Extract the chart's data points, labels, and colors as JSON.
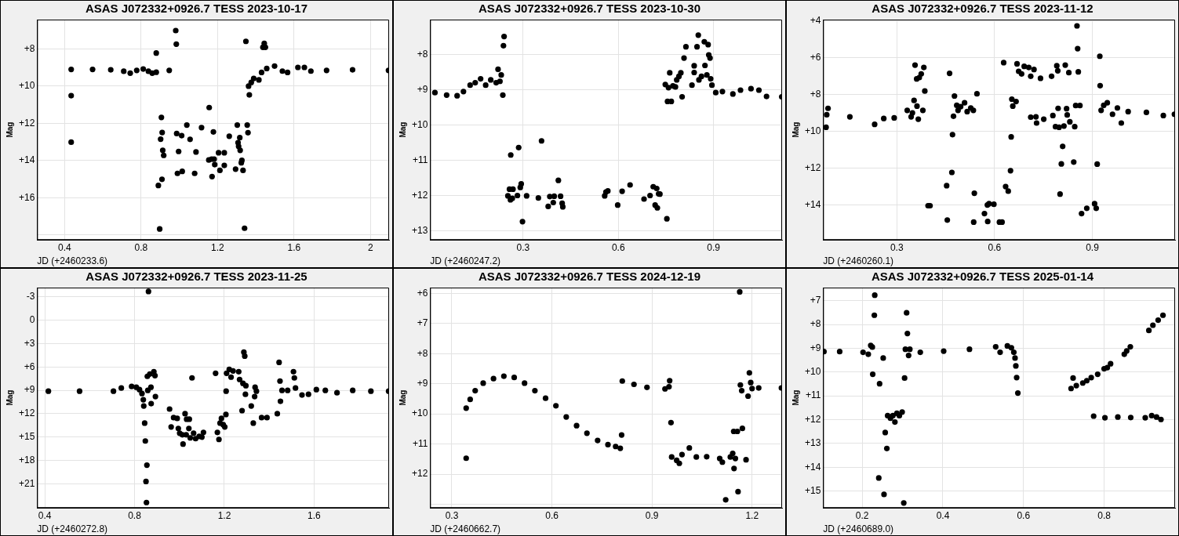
{
  "chart_data": [
    {
      "type": "scatter",
      "title": "ASAS J072332+0926.7 TESS 2023-10-17",
      "xlabel": "JD (+2460233.6)",
      "ylabel": "Mag",
      "color": "#000000",
      "marker": "circle",
      "grid": true,
      "xlim": [
        0.256,
        2.097
      ],
      "ylim": [
        18.27,
        6.42
      ],
      "xticks": [
        0.4,
        0.8,
        1.2,
        1.6,
        2.0
      ],
      "yticks": [
        {
          "value": 8,
          "label": "+8"
        },
        {
          "value": 10,
          "label": "+10"
        },
        {
          "value": 12,
          "label": "+12"
        },
        {
          "value": 14,
          "label": "+14"
        },
        {
          "value": 16,
          "label": "+16"
        },
        {
          "value": 18,
          "label": null
        }
      ],
      "x": [
        0.434,
        0.546,
        0.641,
        0.709,
        0.743,
        0.777,
        0.811,
        0.838,
        0.858,
        0.879,
        0.434,
        0.434,
        0.879,
        0.947,
        0.981,
        0.984,
        0.89,
        0.897,
        0.906,
        0.902,
        0.91,
        0.913,
        0.918,
        0.909,
        0.986,
        0.996,
        0.99,
        1.012,
        1.015,
        1.039,
        1.056,
        1.08,
        1.087,
        1.116,
        1.156,
        1.154,
        1.169,
        1.178,
        1.182,
        1.185,
        1.171,
        1.205,
        1.212,
        1.235,
        1.235,
        1.261,
        1.294,
        1.303,
        1.307,
        1.31,
        1.316,
        1.318,
        1.327,
        1.324,
        1.333,
        1.341,
        1.348,
        1.355,
        1.359,
        1.366,
        1.362,
        1.376,
        1.389,
        1.416,
        1.43,
        1.437,
        1.444,
        1.45,
        1.457,
        1.498,
        1.539,
        1.566,
        1.62,
        1.654,
        1.688,
        1.77,
        1.906,
        2.094
      ],
      "values": [
        9.1,
        9.1,
        9.12,
        9.2,
        9.3,
        9.15,
        9.08,
        9.2,
        9.3,
        9.25,
        10.51,
        13.01,
        8.22,
        9.15,
        7.01,
        7.74,
        15.34,
        17.68,
        11.68,
        12.85,
        12.49,
        13.45,
        13.72,
        15.01,
        12.55,
        13.51,
        14.69,
        12.66,
        14.58,
        12.09,
        12.86,
        14.69,
        13.54,
        12.23,
        11.15,
        13.97,
        13.92,
        12.46,
        13.92,
        14.22,
        14.86,
        13.58,
        14.53,
        13.58,
        14.26,
        12.69,
        14.46,
        12.09,
        13.04,
        13.24,
        12.77,
        13.45,
        13.99,
        14.12,
        14.53,
        17.64,
        7.59,
        12.09,
        12.5,
        10.47,
        10.0,
        9.8,
        9.59,
        9.66,
        9.26,
        7.91,
        7.7,
        7.91,
        9.05,
        8.92,
        9.19,
        9.26,
        8.99,
        8.99,
        9.19,
        9.15,
        9.12,
        9.15
      ]
    },
    {
      "type": "scatter",
      "title": "ASAS J072332+0926.7 TESS 2023-10-30",
      "xlabel": "JD (+2460247.2)",
      "ylabel": "Mag",
      "color": "#000000",
      "marker": "circle",
      "grid": true,
      "xlim": [
        0.007,
        1.116
      ],
      "ylim": [
        13.25,
        7.0
      ],
      "xticks": [
        0.3,
        0.6,
        0.9
      ],
      "yticks": [
        {
          "value": 8,
          "label": "+8"
        },
        {
          "value": 9,
          "label": "+9"
        },
        {
          "value": 10,
          "label": "+10"
        },
        {
          "value": 11,
          "label": "+11"
        },
        {
          "value": 12,
          "label": "+12"
        },
        {
          "value": 13,
          "label": "+13"
        }
      ],
      "x": [
        0.022,
        0.059,
        0.092,
        0.112,
        0.133,
        0.149,
        0.166,
        0.182,
        0.198,
        0.215,
        0.221,
        0.231,
        0.227,
        0.236,
        0.238,
        0.24,
        0.261,
        0.286,
        0.358,
        0.252,
        0.257,
        0.266,
        0.26,
        0.268,
        0.282,
        0.291,
        0.294,
        0.298,
        0.311,
        0.348,
        0.379,
        0.384,
        0.395,
        0.398,
        0.411,
        0.418,
        0.423,
        0.425,
        0.557,
        0.561,
        0.567,
        0.598,
        0.612,
        0.637,
        0.681,
        0.7,
        0.71,
        0.721,
        0.716,
        0.723,
        0.727,
        0.731,
        0.753,
        0.748,
        0.755,
        0.758,
        0.762,
        0.767,
        0.772,
        0.78,
        0.784,
        0.791,
        0.797,
        0.801,
        0.807,
        0.813,
        0.832,
        0.839,
        0.839,
        0.848,
        0.852,
        0.854,
        0.862,
        0.871,
        0.873,
        0.879,
        0.883,
        0.885,
        0.889,
        0.891,
        0.895,
        0.907,
        0.928,
        0.961,
        0.985,
        1.018,
        1.043,
        1.067,
        1.115
      ],
      "values": [
        9.07,
        9.14,
        9.16,
        9.04,
        8.86,
        8.79,
        8.68,
        8.86,
        8.71,
        8.79,
        8.41,
        8.57,
        8.75,
        9.14,
        7.74,
        7.48,
        10.84,
        10.63,
        10.44,
        12.0,
        11.81,
        12.07,
        12.11,
        11.81,
        11.99,
        11.76,
        11.66,
        12.73,
        12.0,
        12.06,
        12.3,
        12.02,
        12.19,
        12.01,
        11.56,
        12.01,
        12.21,
        12.31,
        12.0,
        11.89,
        11.86,
        12.26,
        11.87,
        11.69,
        12.09,
        11.99,
        11.74,
        11.79,
        12.26,
        12.34,
        11.94,
        11.95,
        12.65,
        8.84,
        9.32,
        8.93,
        8.51,
        9.32,
        8.88,
        8.91,
        8.71,
        8.61,
        8.51,
        9.19,
        8.09,
        7.77,
        8.86,
        8.31,
        8.5,
        7.77,
        7.44,
        8.71,
        8.61,
        7.63,
        8.3,
        8.57,
        7.71,
        8.0,
        8.09,
        8.68,
        8.86,
        9.07,
        9.04,
        9.11,
        9.0,
        8.96,
        9.0,
        9.18,
        9.19
      ]
    },
    {
      "type": "scatter",
      "title": "ASAS J072332+0926.7 TESS 2023-11-12",
      "xlabel": "JD (+2460260.1)",
      "ylabel": "Mag",
      "color": "#000000",
      "marker": "circle",
      "grid": true,
      "xlim": [
        0.074,
        1.154
      ],
      "ylim": [
        15.9,
        3.93
      ],
      "xticks": [
        0.3,
        0.6,
        0.9
      ],
      "yticks": [
        {
          "value": 4,
          "label": "+4"
        },
        {
          "value": 6,
          "label": "+6"
        },
        {
          "value": 8,
          "label": "+8"
        },
        {
          "value": 10,
          "label": "+10"
        },
        {
          "value": 12,
          "label": "+12"
        },
        {
          "value": 14,
          "label": "+14"
        }
      ],
      "x": [
        0.083,
        0.085,
        0.089,
        0.156,
        0.232,
        0.26,
        0.292,
        0.332,
        0.344,
        0.348,
        0.353,
        0.356,
        0.361,
        0.362,
        0.366,
        0.369,
        0.375,
        0.38,
        0.383,
        0.386,
        0.396,
        0.402,
        0.453,
        0.455,
        0.462,
        0.469,
        0.471,
        0.474,
        0.477,
        0.484,
        0.488,
        0.496,
        0.508,
        0.516,
        0.527,
        0.535,
        0.538,
        0.536,
        0.546,
        0.569,
        0.578,
        0.579,
        0.583,
        0.598,
        0.615,
        0.623,
        0.628,
        0.634,
        0.642,
        0.649,
        0.651,
        0.653,
        0.656,
        0.666,
        0.669,
        0.674,
        0.683,
        0.691,
        0.705,
        0.711,
        0.721,
        0.711,
        0.727,
        0.729,
        0.741,
        0.751,
        0.775,
        0.779,
        0.787,
        0.791,
        0.794,
        0.795,
        0.798,
        0.801,
        0.805,
        0.809,
        0.813,
        0.817,
        0.821,
        0.823,
        0.828,
        0.831,
        0.843,
        0.846,
        0.849,
        0.853,
        0.855,
        0.857,
        0.862,
        0.867,
        0.883,
        0.907,
        0.912,
        0.915,
        0.923,
        0.924,
        0.927,
        0.935,
        0.946,
        0.962,
        0.977,
        0.989,
        1.01,
        1.066,
        1.118,
        1.152
      ],
      "values": [
        9.78,
        9.1,
        8.75,
        9.21,
        9.62,
        9.3,
        9.27,
        8.86,
        9.21,
        9.0,
        8.32,
        6.4,
        7.15,
        8.63,
        9.34,
        7.08,
        6.88,
        8.86,
        6.53,
        7.81,
        14.04,
        14.04,
        12.95,
        14.82,
        6.85,
        12.23,
        10.18,
        9.18,
        8.08,
        8.59,
        8.86,
        8.66,
        8.45,
        8.93,
        8.73,
        8.86,
        13.36,
        14.93,
        7.96,
        14.47,
        14.0,
        14.9,
        13.93,
        13.96,
        14.93,
        14.93,
        6.27,
        13.0,
        13.25,
        12.14,
        10.3,
        8.25,
        8.63,
        8.38,
        6.33,
        6.74,
        6.88,
        6.47,
        6.53,
        7.01,
        6.64,
        9.23,
        9.21,
        9.55,
        7.12,
        9.34,
        7.01,
        9.14,
        9.75,
        6.44,
        6.71,
        8.75,
        9.78,
        13.41,
        11.77,
        10.82,
        9.71,
        6.4,
        8.77,
        9.11,
        6.81,
        9.48,
        11.67,
        9.75,
        8.6,
        4.27,
        5.51,
        6.77,
        8.6,
        14.47,
        14.18,
        13.93,
        14.18,
        11.78,
        5.92,
        7.52,
        8.86,
        8.59,
        8.45,
        9.07,
        8.73,
        9.55,
        8.93,
        8.97,
        9.14,
        9.07
      ]
    },
    {
      "type": "scatter",
      "title": "ASAS J072332+0926.7 TESS 2023-11-25",
      "xlabel": "JD (+2460272.8)",
      "ylabel": "Mag",
      "color": "#000000",
      "marker": "circle",
      "grid": true,
      "xlim": [
        0.366,
        1.934
      ],
      "ylim": [
        24.1,
        -4.2
      ],
      "xticks": [
        0.4,
        0.8,
        1.2,
        1.6
      ],
      "yticks": [
        -3,
        0,
        {
          "value": 3,
          "label": "+3"
        },
        {
          "value": 6,
          "label": "+6"
        },
        {
          "value": 9,
          "label": "+9"
        },
        {
          "value": 12,
          "label": "+12"
        },
        {
          "value": 15,
          "label": "+15"
        },
        {
          "value": 18,
          "label": "+18"
        },
        {
          "value": 21,
          "label": "+21"
        },
        {
          "value": 24,
          "label": null
        }
      ],
      "x": [
        0.416,
        0.555,
        0.706,
        0.741,
        0.787,
        0.808,
        0.822,
        0.833,
        0.839,
        0.841,
        0.845,
        0.848,
        0.855,
        0.851,
        0.853,
        0.862,
        0.859,
        0.857,
        0.868,
        0.874,
        0.873,
        0.886,
        0.891,
        0.893,
        0.956,
        0.963,
        0.974,
        0.99,
        0.995,
        1.001,
        1.013,
        1.016,
        1.025,
        1.03,
        1.032,
        1.042,
        1.044,
        1.048,
        1.056,
        1.063,
        1.072,
        1.088,
        1.1,
        1.107,
        1.161,
        1.169,
        1.176,
        1.181,
        1.187,
        1.195,
        1.202,
        1.207,
        1.208,
        1.21,
        1.222,
        1.23,
        1.239,
        1.264,
        1.268,
        1.279,
        1.283,
        1.287,
        1.291,
        1.294,
        1.296,
        1.32,
        1.329,
        1.335,
        1.337,
        1.343,
        1.366,
        1.39,
        1.436,
        1.444,
        1.448,
        1.45,
        1.457,
        1.482,
        1.508,
        1.512,
        1.517,
        1.546,
        1.575,
        1.61,
        1.65,
        1.702,
        1.772,
        1.853,
        1.932
      ],
      "values": [
        9.1,
        9.1,
        9.1,
        8.7,
        8.5,
        8.6,
        8.9,
        9.4,
        10.2,
        11.0,
        13.2,
        15.5,
        18.6,
        20.7,
        23.4,
        -3.7,
        9.0,
        7.2,
        6.9,
        10.7,
        8.6,
        6.6,
        7.1,
        9.8,
        11.4,
        13.7,
        12.5,
        12.6,
        13.9,
        14.5,
        14.7,
        15.9,
        12.0,
        14.7,
        12.7,
        13.9,
        12.7,
        15.1,
        7.4,
        14.5,
        15.2,
        14.9,
        15.0,
        14.4,
        6.8,
        14.4,
        15.3,
        13.2,
        12.6,
        13.4,
        13.7,
        12.1,
        9.1,
        6.8,
        6.3,
        7.3,
        6.5,
        6.6,
        7.6,
        11.6,
        8.1,
        4.1,
        4.6,
        9.5,
        8.4,
        11.0,
        13.2,
        9.8,
        8.6,
        9.1,
        12.5,
        12.5,
        12.0,
        5.4,
        7.8,
        10.4,
        9.0,
        9.0,
        6.6,
        7.4,
        8.7,
        9.6,
        9.5,
        8.9,
        9.0,
        9.3,
        9.0,
        9.1,
        9.1
      ]
    },
    {
      "type": "scatter",
      "title": "ASAS J072332+0926.7 TESS 2024-12-19",
      "xlabel": "JD (+2460662.7)",
      "ylabel": "Mag",
      "color": "#000000",
      "marker": "circle",
      "grid": true,
      "xlim": [
        0.235,
        1.29
      ],
      "ylim": [
        13.12,
        5.81
      ],
      "xticks": [
        0.3,
        0.6,
        0.9,
        1.2
      ],
      "yticks": [
        {
          "value": 6,
          "label": "+6"
        },
        {
          "value": 7,
          "label": "+7"
        },
        {
          "value": 8,
          "label": "+8"
        },
        {
          "value": 9,
          "label": "+9"
        },
        {
          "value": 10,
          "label": "+10"
        },
        {
          "value": 11,
          "label": "+11"
        },
        {
          "value": 12,
          "label": "+12"
        },
        {
          "value": 13,
          "label": null
        }
      ],
      "x": [
        0.343,
        0.355,
        0.37,
        0.394,
        0.425,
        0.456,
        0.487,
        0.518,
        0.549,
        0.581,
        0.612,
        0.643,
        0.674,
        0.705,
        0.737,
        0.768,
        0.791,
        0.805,
        0.809,
        0.343,
        0.811,
        0.846,
        0.885,
        0.939,
        0.951,
        0.953,
        0.957,
        0.959,
        0.974,
        0.982,
        0.99,
        1.012,
        1.033,
        1.064,
        1.103,
        1.111,
        1.121,
        1.135,
        1.142,
        1.146,
        1.15,
        1.145,
        1.156,
        1.158,
        1.163,
        1.165,
        1.169,
        1.171,
        1.182,
        1.188,
        1.192,
        1.196,
        1.2,
        1.22,
        1.288
      ],
      "values": [
        9.81,
        9.52,
        9.23,
        8.98,
        8.83,
        8.75,
        8.79,
        8.98,
        9.23,
        9.48,
        9.73,
        10.1,
        10.39,
        10.64,
        10.88,
        11.02,
        11.08,
        11.14,
        10.7,
        11.47,
        8.91,
        9.02,
        9.12,
        9.17,
        9.1,
        8.9,
        10.29,
        11.43,
        11.54,
        11.64,
        11.35,
        11.13,
        11.43,
        11.42,
        11.48,
        11.6,
        12.85,
        11.43,
        11.31,
        11.81,
        11.48,
        10.58,
        10.58,
        12.58,
        5.95,
        9.04,
        9.23,
        10.48,
        11.52,
        9.41,
        8.64,
        8.96,
        9.16,
        9.14,
        9.14
      ]
    },
    {
      "type": "scatter",
      "title": "ASAS J072332+0926.7 TESS 2025-01-14",
      "xlabel": "JD (+2460689.0)",
      "ylabel": "Mag",
      "color": "#000000",
      "marker": "circle",
      "grid": true,
      "xlim": [
        0.103,
        0.976
      ],
      "ylim": [
        15.71,
        6.45
      ],
      "xticks": [
        0.2,
        0.4,
        0.6,
        0.8
      ],
      "yticks": [
        {
          "value": 7,
          "label": "+7"
        },
        {
          "value": 8,
          "label": "+8"
        },
        {
          "value": 9,
          "label": "+9"
        },
        {
          "value": 10,
          "label": "+10"
        },
        {
          "value": 11,
          "label": "+11"
        },
        {
          "value": 12,
          "label": "+12"
        },
        {
          "value": 13,
          "label": "+13"
        },
        {
          "value": 14,
          "label": "+14"
        },
        {
          "value": 15,
          "label": "+15"
        }
      ],
      "x": [
        0.105,
        0.144,
        0.202,
        0.215,
        0.221,
        0.225,
        0.226,
        0.23,
        0.231,
        0.241,
        0.243,
        0.252,
        0.254,
        0.257,
        0.261,
        0.263,
        0.27,
        0.276,
        0.281,
        0.286,
        0.292,
        0.299,
        0.303,
        0.305,
        0.307,
        0.31,
        0.312,
        0.315,
        0.318,
        0.344,
        0.402,
        0.466,
        0.531,
        0.56,
        0.57,
        0.576,
        0.579,
        0.581,
        0.583,
        0.586,
        0.542,
        0.718,
        0.723,
        0.731,
        0.747,
        0.757,
        0.768,
        0.784,
        0.8,
        0.808,
        0.816,
        0.85,
        0.856,
        0.865,
        0.911,
        0.921,
        0.934,
        0.946,
        0.774,
        0.802,
        0.834,
        0.866,
        0.902,
        0.918,
        0.93,
        0.941
      ],
      "values": [
        9.14,
        9.14,
        9.17,
        9.25,
        8.88,
        8.95,
        10.09,
        7.61,
        6.77,
        14.45,
        10.49,
        9.41,
        15.14,
        12.54,
        13.21,
        11.83,
        11.94,
        11.83,
        12.1,
        11.73,
        11.83,
        11.68,
        15.5,
        10.25,
        9.04,
        7.51,
        8.38,
        9.3,
        9.04,
        9.17,
        9.12,
        9.04,
        8.94,
        8.9,
        8.98,
        9.17,
        9.41,
        9.74,
        10.23,
        10.88,
        9.17,
        10.69,
        10.25,
        10.57,
        10.46,
        10.36,
        10.23,
        10.09,
        9.86,
        9.81,
        9.65,
        9.25,
        9.11,
        8.94,
        8.25,
        8.03,
        7.82,
        7.61,
        11.85,
        11.92,
        11.89,
        11.91,
        11.92,
        11.83,
        11.89,
        11.99
      ]
    }
  ]
}
